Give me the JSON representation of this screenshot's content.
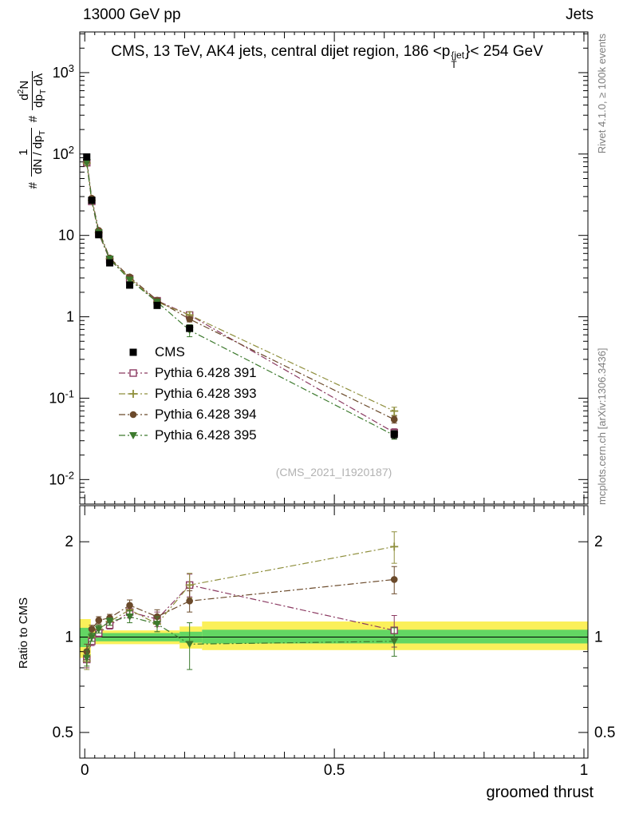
{
  "header": {
    "left": "13000 GeV pp",
    "right": "Jets"
  },
  "title": {
    "pre": "CMS, 13 TeV, AK4 jets, central dijet region, 186 <p",
    "sup": "{jet",
    "sub": "T",
    "post": "}< 254 GeV"
  },
  "watermark": "(CMS_2021_I1920187)",
  "right_captions": [
    "Rivet 4.1.0, ≥ 100k events",
    "mcplots.cern.ch [arXiv:1306.3436]"
  ],
  "ratio_label": "Ratio to CMS",
  "chart_data": {
    "type": "scatter",
    "xlabel": "groomed thrust",
    "x_range": [
      -0.01,
      1.008
    ],
    "y_range_main": [
      0.005,
      3162
    ],
    "y_range_ratio": [
      0.415,
      2.6
    ],
    "x": [
      0.004,
      0.014,
      0.028,
      0.05,
      0.09,
      0.145,
      0.21,
      0.62
    ],
    "x_ticks": {
      "values": [
        0,
        0.5,
        1
      ],
      "labels": [
        "0",
        "0.5",
        "1"
      ]
    },
    "y_ticks_main": {
      "exponents": [
        3,
        2,
        1,
        0,
        -1,
        -2
      ],
      "labels": [
        "10^{3}",
        "10^{2}",
        "10",
        "1",
        "10^{-1}",
        "10^{-2}"
      ]
    },
    "y_ticks_ratio": {
      "values": [
        2,
        1,
        0.5
      ],
      "labels": [
        "2",
        "1",
        "0.5"
      ]
    },
    "ylabel_parts": [
      {
        "t": "#"
      },
      {
        "num": "1",
        "den": "dN / dp_{T}"
      },
      {
        "t": "#"
      },
      {
        "num": "d^{2}N",
        "den": "dp_{T} dλ"
      }
    ],
    "series": [
      {
        "name": "CMS",
        "marker": "square-filled",
        "color": "#000000",
        "line": "none",
        "values": [
          92,
          27,
          10.2,
          4.6,
          2.45,
          1.38,
          0.72,
          0.036
        ],
        "errors": [
          5,
          1.4,
          0.5,
          0.23,
          0.12,
          0.07,
          0.05,
          0.004
        ]
      },
      {
        "name": "Pythia 6.428 391",
        "marker": "square-open",
        "color": "#8b3a62",
        "line": "dashdot",
        "ratio": [
          0.85,
          0.97,
          1.03,
          1.09,
          1.2,
          1.14,
          1.46,
          1.05
        ],
        "ratio_err": [
          0.05,
          0.03,
          0.03,
          0.03,
          0.05,
          0.06,
          0.12,
          0.12
        ]
      },
      {
        "name": "Pythia 6.428 393",
        "marker": "cross-open",
        "color": "#8f8f3d",
        "line": "dashdot",
        "ratio": [
          0.84,
          1.0,
          1.06,
          1.12,
          1.22,
          1.1,
          1.46,
          1.93
        ],
        "ratio_err": [
          0.05,
          0.03,
          0.03,
          0.03,
          0.05,
          0.06,
          0.13,
          0.22
        ]
      },
      {
        "name": "Pythia 6.428 394",
        "marker": "circle-filled",
        "color": "#6b4a2b",
        "line": "dashdot",
        "ratio": [
          0.9,
          1.06,
          1.13,
          1.15,
          1.26,
          1.16,
          1.3,
          1.52
        ],
        "ratio_err": [
          0.05,
          0.03,
          0.03,
          0.03,
          0.05,
          0.06,
          0.1,
          0.15
        ]
      },
      {
        "name": "Pythia 6.428 395",
        "marker": "triangle-down-filled",
        "color": "#3d7a2e",
        "line": "dashdot",
        "ratio": [
          0.86,
          1.0,
          1.06,
          1.12,
          1.16,
          1.1,
          0.95,
          0.97
        ],
        "ratio_err": [
          0.05,
          0.03,
          0.03,
          0.03,
          0.05,
          0.06,
          0.16,
          0.1
        ]
      }
    ],
    "bands": {
      "yellow": [
        {
          "x0": -0.01,
          "x1": 0.012,
          "lo": 0.86,
          "hi": 1.14
        },
        {
          "x0": 0.012,
          "x1": 0.19,
          "lo": 0.95,
          "hi": 1.05
        },
        {
          "x0": 0.19,
          "x1": 0.235,
          "lo": 0.92,
          "hi": 1.08
        },
        {
          "x0": 0.235,
          "x1": 1.008,
          "lo": 0.91,
          "hi": 1.12
        }
      ],
      "green": [
        {
          "x0": -0.01,
          "x1": 0.012,
          "lo": 0.93,
          "hi": 1.07
        },
        {
          "x0": 0.012,
          "x1": 0.19,
          "lo": 0.97,
          "hi": 1.03
        },
        {
          "x0": 0.19,
          "x1": 0.235,
          "lo": 0.96,
          "hi": 1.04
        },
        {
          "x0": 0.235,
          "x1": 1.008,
          "lo": 0.955,
          "hi": 1.055
        }
      ]
    },
    "band_colors": {
      "yellow": "#fbf05a",
      "green": "#63d663"
    },
    "ratio_line": 1
  }
}
